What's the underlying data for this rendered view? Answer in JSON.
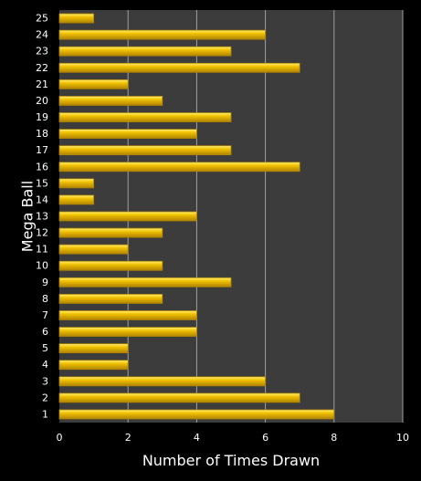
{
  "chart_data": {
    "type": "bar",
    "orientation": "horizontal",
    "title": "",
    "xlabel": "Number of Times Drawn",
    "ylabel": "Mega Ball",
    "xlim": [
      0,
      10
    ],
    "x_ticks": [
      0,
      2,
      4,
      6,
      8,
      10
    ],
    "grid": "vertical",
    "legend": "none",
    "categories": [
      "1",
      "2",
      "3",
      "4",
      "5",
      "6",
      "7",
      "8",
      "9",
      "10",
      "11",
      "12",
      "13",
      "14",
      "15",
      "16",
      "17",
      "18",
      "19",
      "20",
      "21",
      "22",
      "23",
      "24",
      "25"
    ],
    "values": [
      8,
      7,
      6,
      2,
      2,
      4,
      4,
      3,
      5,
      3,
      2,
      3,
      4,
      1,
      1,
      7,
      5,
      4,
      5,
      3,
      2,
      7,
      5,
      6,
      1
    ],
    "colors": {
      "background": "#000000",
      "plot_area": "#3c3c3c",
      "grid": "#a0a0a0",
      "bar_fill": "#f2c200",
      "bar_highlight": "#fff27a",
      "bar_shadow": "#b08400",
      "text": "#ffffff"
    }
  }
}
